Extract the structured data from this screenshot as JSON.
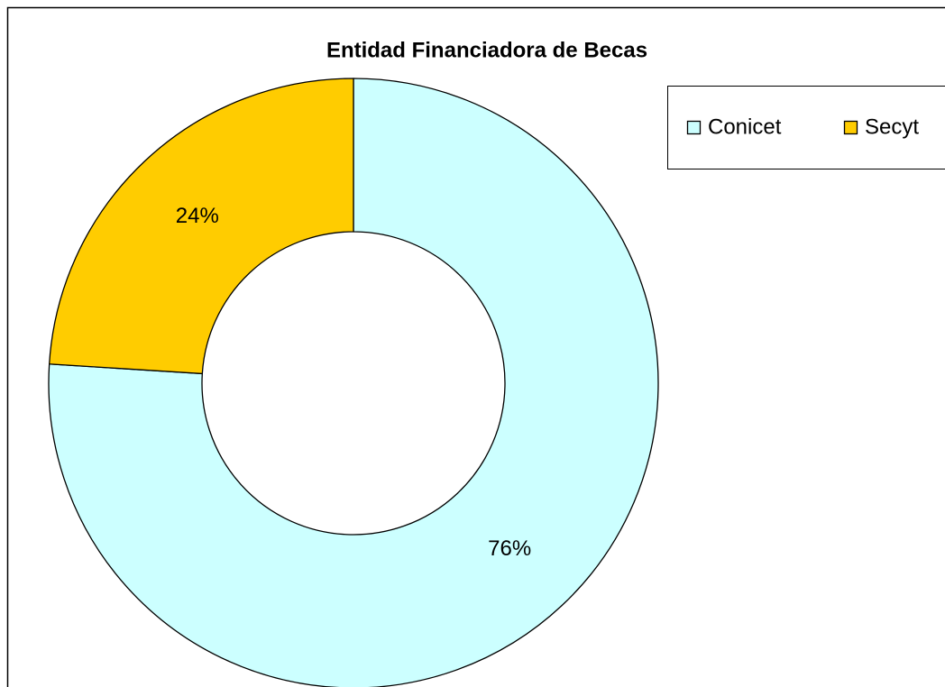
{
  "chart_data": {
    "type": "donut",
    "title": "Entidad Financiadora de Becas",
    "categories": [
      "Conicet",
      "Secyt"
    ],
    "values": [
      76,
      24
    ],
    "value_labels": [
      "76%",
      "24%"
    ],
    "colors": [
      "#ccffff",
      "#ffcc00"
    ],
    "legend": "top-right"
  }
}
